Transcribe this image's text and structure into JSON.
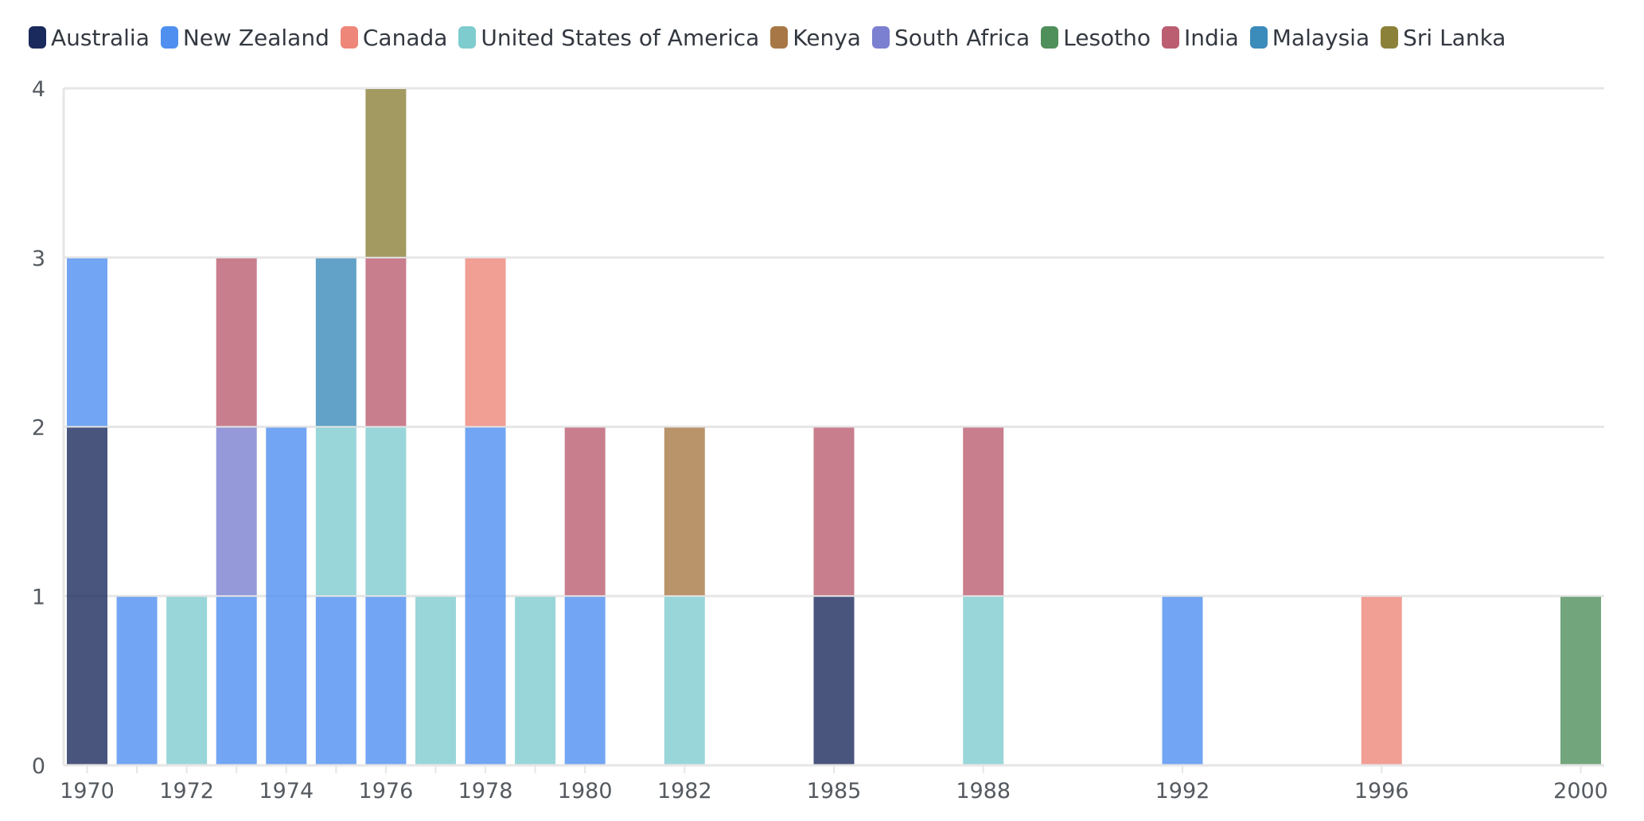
{
  "chart_data": {
    "type": "bar",
    "stacked": true,
    "title": "",
    "xlabel": "",
    "ylabel": "",
    "ylim": [
      0,
      4
    ],
    "yticks": [
      0,
      1,
      2,
      3,
      4
    ],
    "grid": true,
    "legend_position": "top-left",
    "categories": [
      "1970",
      "1971",
      "1972",
      "1973",
      "1974",
      "1975",
      "1976",
      "1977",
      "1978",
      "1979",
      "1980",
      "1982",
      "1985",
      "1988",
      "1992",
      "1996",
      "2000"
    ],
    "x_tick_labels": [
      {
        "category": "1970",
        "label": "1970"
      },
      {
        "category": "1972",
        "label": "1972"
      },
      {
        "category": "1974",
        "label": "1974"
      },
      {
        "category": "1976",
        "label": "1976"
      },
      {
        "category": "1978",
        "label": "1978"
      },
      {
        "category": "1980",
        "label": "1980"
      },
      {
        "category": "1982",
        "label": "1982"
      },
      {
        "category": "1985",
        "label": "1985"
      },
      {
        "category": "1988",
        "label": "1988"
      },
      {
        "category": "1992",
        "label": "1992"
      },
      {
        "category": "1996",
        "label": "1996"
      },
      {
        "category": "2000",
        "label": "2000"
      }
    ],
    "series": [
      {
        "name": "Australia",
        "color": "#1b2a5c",
        "values": [
          2,
          0,
          0,
          0,
          0,
          0,
          0,
          0,
          0,
          0,
          0,
          0,
          1,
          0,
          0,
          0,
          0
        ]
      },
      {
        "name": "New Zealand",
        "color": "#4f8ff0",
        "values": [
          1,
          1,
          0,
          1,
          2,
          1,
          1,
          0,
          2,
          0,
          1,
          0,
          0,
          0,
          1,
          0,
          0
        ]
      },
      {
        "name": "Canada",
        "color": "#ee8679",
        "values": [
          0,
          0,
          0,
          0,
          0,
          0,
          0,
          0,
          1,
          0,
          0,
          0,
          0,
          0,
          0,
          1,
          0
        ]
      },
      {
        "name": "United States of America",
        "color": "#7fcccf",
        "values": [
          0,
          0,
          1,
          0,
          0,
          1,
          1,
          1,
          0,
          1,
          0,
          1,
          0,
          1,
          0,
          0,
          0
        ]
      },
      {
        "name": "Kenya",
        "color": "#a77845",
        "values": [
          0,
          0,
          0,
          0,
          0,
          0,
          0,
          0,
          0,
          0,
          0,
          1,
          0,
          0,
          0,
          0,
          0
        ]
      },
      {
        "name": "South Africa",
        "color": "#7b80d0",
        "values": [
          0,
          0,
          0,
          1,
          0,
          0,
          0,
          0,
          0,
          0,
          0,
          0,
          0,
          0,
          0,
          0,
          0
        ]
      },
      {
        "name": "Lesotho",
        "color": "#4f8f5a",
        "values": [
          0,
          0,
          0,
          0,
          0,
          0,
          0,
          0,
          0,
          0,
          0,
          0,
          0,
          0,
          0,
          0,
          1
        ]
      },
      {
        "name": "India",
        "color": "#bb5e72",
        "values": [
          0,
          0,
          0,
          1,
          0,
          0,
          1,
          0,
          0,
          0,
          1,
          0,
          1,
          1,
          0,
          0,
          0
        ]
      },
      {
        "name": "Malaysia",
        "color": "#3b8bbb",
        "values": [
          0,
          0,
          0,
          0,
          0,
          1,
          0,
          0,
          0,
          0,
          0,
          0,
          0,
          0,
          0,
          0,
          0
        ]
      },
      {
        "name": "Sri Lanka",
        "color": "#8c8139",
        "values": [
          0,
          0,
          0,
          0,
          0,
          0,
          1,
          0,
          0,
          0,
          0,
          0,
          0,
          0,
          0,
          0,
          0
        ]
      }
    ]
  }
}
